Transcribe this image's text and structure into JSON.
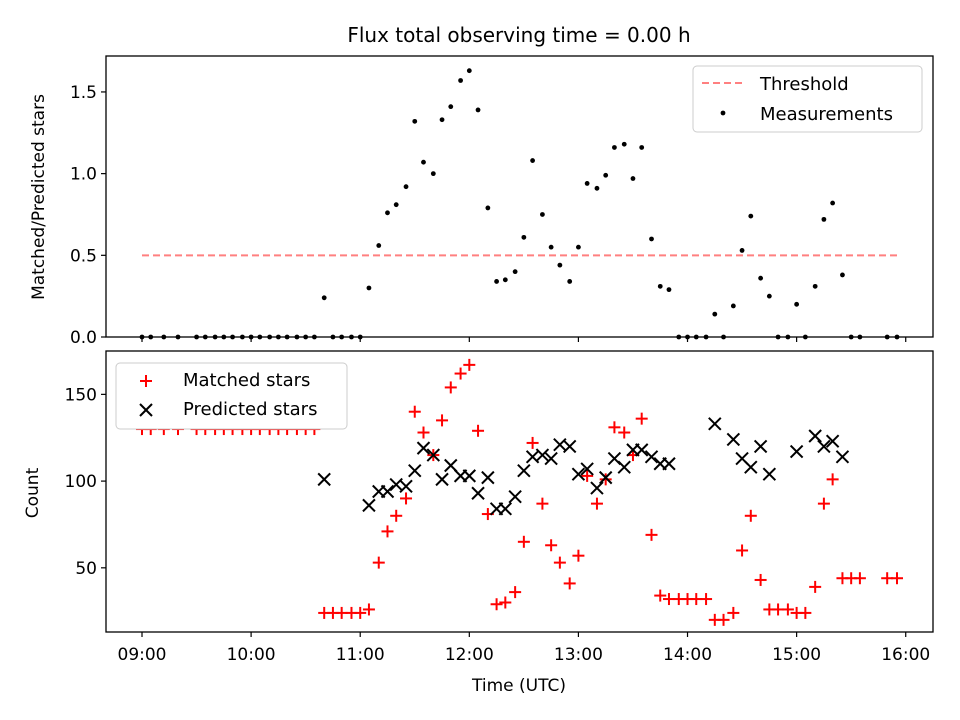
{
  "chart_data": [
    {
      "type": "scatter",
      "title": "Flux total observing time = 0.00 h",
      "ylabel": "Matched/Predicted stars",
      "xlabel": "",
      "ylim": [
        0,
        1.72
      ],
      "yticks": [
        0.0,
        0.5,
        1.0,
        1.5
      ],
      "ytick_labels": [
        "0.0",
        "0.5",
        "1.0",
        "1.5"
      ],
      "legend": {
        "placement": "top-right",
        "entries": [
          "Threshold",
          "Measurements"
        ]
      },
      "threshold": {
        "name": "Threshold",
        "value": 0.5,
        "x": [
          9.0,
          15.92
        ],
        "color": "#ff8080"
      },
      "series": [
        {
          "name": "Measurements",
          "color": "#000000",
          "x": [
            9.0,
            9.08,
            9.2,
            9.33,
            9.5,
            9.58,
            9.67,
            9.75,
            9.83,
            9.92,
            10.0,
            10.08,
            10.17,
            10.25,
            10.33,
            10.42,
            10.5,
            10.58,
            10.67,
            10.75,
            10.83,
            10.92,
            11.0,
            11.08,
            11.17,
            11.25,
            11.33,
            11.42,
            11.5,
            11.58,
            11.67,
            11.75,
            11.83,
            11.92,
            12.0,
            12.08,
            12.17,
            12.25,
            12.33,
            12.42,
            12.5,
            12.58,
            12.67,
            12.75,
            12.83,
            12.92,
            13.0,
            13.08,
            13.17,
            13.25,
            13.33,
            13.42,
            13.5,
            13.58,
            13.67,
            13.75,
            13.83,
            13.92,
            14.0,
            14.08,
            14.17,
            14.25,
            14.33,
            14.42,
            14.5,
            14.58,
            14.67,
            14.75,
            14.83,
            14.92,
            15.0,
            15.08,
            15.17,
            15.25,
            15.33,
            15.42,
            15.5,
            15.58,
            15.83,
            15.92
          ],
          "y": [
            0,
            0,
            0,
            0,
            0,
            0,
            0,
            0,
            0,
            0,
            0,
            0,
            0,
            0,
            0,
            0,
            0,
            0,
            0.24,
            0,
            0,
            0,
            0,
            0.3,
            0.56,
            0.76,
            0.81,
            0.92,
            1.32,
            1.07,
            1.0,
            1.33,
            1.41,
            1.57,
            1.63,
            1.39,
            0.79,
            0.34,
            0.35,
            0.4,
            0.61,
            1.08,
            0.75,
            0.55,
            0.44,
            0.34,
            0.55,
            0.94,
            0.91,
            0.99,
            1.16,
            1.18,
            0.97,
            1.16,
            0.6,
            0.31,
            0.29,
            0,
            0,
            0,
            0,
            0.14,
            0,
            0.19,
            0.53,
            0.74,
            0.36,
            0.25,
            0,
            0,
            0.2,
            0,
            0.31,
            0.72,
            0.82,
            0.38,
            0,
            0,
            0,
            0
          ]
        }
      ]
    },
    {
      "type": "scatter",
      "title": "",
      "ylabel": "Count",
      "xlabel": "Time (UTC)",
      "ylim": [
        13,
        175
      ],
      "xlim": [
        8.67,
        16.25
      ],
      "yticks": [
        50,
        100,
        150
      ],
      "ytick_labels": [
        "50",
        "100",
        "150"
      ],
      "xticks": [
        9,
        10,
        11,
        12,
        13,
        14,
        15,
        16
      ],
      "xtick_labels": [
        "09:00",
        "10:00",
        "11:00",
        "12:00",
        "13:00",
        "14:00",
        "15:00",
        "16:00"
      ],
      "legend": {
        "placement": "top-left",
        "entries": [
          "Matched stars",
          "Predicted stars"
        ]
      },
      "series": [
        {
          "name": "Matched stars",
          "color": "#ff0000",
          "marker": "plus",
          "x": [
            9.0,
            9.08,
            9.2,
            9.33,
            9.5,
            9.58,
            9.67,
            9.75,
            9.83,
            9.92,
            10.0,
            10.08,
            10.17,
            10.25,
            10.33,
            10.42,
            10.5,
            10.58,
            10.67,
            10.75,
            10.83,
            10.92,
            11.0,
            11.08,
            11.17,
            11.25,
            11.33,
            11.42,
            11.5,
            11.58,
            11.67,
            11.75,
            11.83,
            11.92,
            12.0,
            12.08,
            12.17,
            12.25,
            12.33,
            12.42,
            12.5,
            12.58,
            12.67,
            12.75,
            12.83,
            12.92,
            13.0,
            13.08,
            13.17,
            13.25,
            13.33,
            13.42,
            13.5,
            13.58,
            13.67,
            13.75,
            13.83,
            13.92,
            14.0,
            14.08,
            14.17,
            14.25,
            14.33,
            14.42,
            14.5,
            14.58,
            14.67,
            14.75,
            14.83,
            14.92,
            15.0,
            15.08,
            15.17,
            15.25,
            15.33,
            15.42,
            15.5,
            15.58,
            15.83,
            15.92
          ],
          "y": [
            130,
            130,
            130,
            130,
            130,
            130,
            130,
            130,
            130,
            130,
            130,
            130,
            130,
            130,
            130,
            130,
            130,
            130,
            24,
            24,
            24,
            24,
            24,
            26,
            53,
            71,
            80,
            90,
            140,
            128,
            115,
            135,
            154,
            162,
            167,
            129,
            81,
            29,
            30,
            36,
            65,
            122,
            87,
            63,
            53,
            41,
            57,
            103,
            87,
            101,
            131,
            128,
            115,
            136,
            69,
            34,
            32,
            32,
            32,
            32,
            32,
            20,
            20,
            24,
            60,
            80,
            43,
            26,
            26,
            26,
            24,
            24,
            39,
            87,
            101,
            44,
            44,
            44,
            44,
            44
          ]
        },
        {
          "name": "Predicted stars",
          "color": "#000000",
          "marker": "x",
          "x": [
            10.67,
            11.08,
            11.17,
            11.25,
            11.33,
            11.42,
            11.5,
            11.58,
            11.67,
            11.75,
            11.83,
            11.92,
            12.0,
            12.08,
            12.17,
            12.25,
            12.33,
            12.42,
            12.5,
            12.58,
            12.67,
            12.75,
            12.83,
            12.92,
            13.0,
            13.08,
            13.17,
            13.25,
            13.33,
            13.42,
            13.5,
            13.58,
            13.67,
            13.75,
            13.83,
            14.25,
            14.42,
            14.5,
            14.58,
            14.67,
            14.75,
            15.0,
            15.17,
            15.25,
            15.33,
            15.42
          ],
          "y": [
            101,
            86,
            94,
            94,
            98,
            97,
            106,
            119,
            115,
            101,
            109,
            103,
            103,
            93,
            102,
            84,
            84,
            91,
            106,
            114,
            115,
            113,
            121,
            120,
            104,
            107,
            96,
            102,
            113,
            108,
            118,
            118,
            114,
            110,
            110,
            133,
            124,
            113,
            108,
            120,
            104,
            117,
            126,
            120,
            123,
            114
          ]
        }
      ]
    }
  ]
}
